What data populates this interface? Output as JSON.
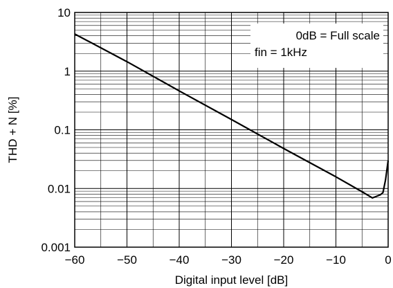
{
  "chart_data": {
    "type": "line",
    "xlabel": "Digital input level [dB]",
    "ylabel": "THD + N [%]",
    "x_scale": "linear",
    "y_scale": "log",
    "xlim": [
      -60,
      0
    ],
    "ylim": [
      0.001,
      10
    ],
    "x_ticks": [
      -60,
      -50,
      -40,
      -30,
      -20,
      -10,
      0
    ],
    "x_tick_labels": [
      "−60",
      "−50",
      "−40",
      "−30",
      "−20",
      "−10",
      "0"
    ],
    "y_ticks": [
      0.001,
      0.01,
      0.1,
      1,
      10
    ],
    "y_tick_labels": [
      "0.001",
      "0.01",
      "0.1",
      "1",
      "10"
    ],
    "grid": true,
    "annotation": [
      "0dB = Full scale",
      "fin = 1kHz"
    ],
    "annotation_position": "top-right",
    "series": [
      {
        "color": "#000000",
        "points": [
          [
            -60,
            4.3
          ],
          [
            -50,
            1.45
          ],
          [
            -40,
            0.46
          ],
          [
            -30,
            0.15
          ],
          [
            -20,
            0.048
          ],
          [
            -10,
            0.0158
          ],
          [
            -5,
            0.0088
          ],
          [
            -3,
            0.0069
          ],
          [
            -1.5,
            0.0078
          ],
          [
            -1,
            0.0085
          ],
          [
            -0.5,
            0.014
          ],
          [
            0,
            0.03
          ]
        ]
      }
    ]
  }
}
